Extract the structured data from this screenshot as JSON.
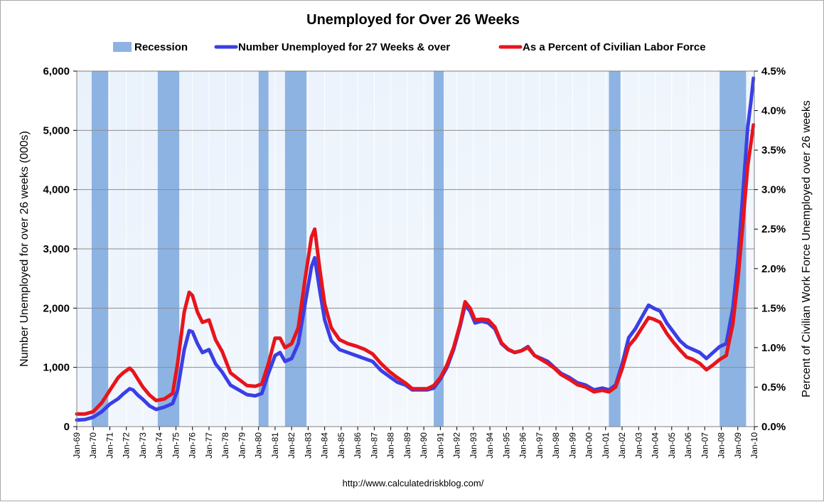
{
  "chart_data": {
    "type": "line",
    "title": "Unemployed for Over 26 Weeks",
    "legend": {
      "placement": "top",
      "entries": [
        {
          "key": "recession",
          "label": "Recession",
          "color": "#8db3e2"
        },
        {
          "key": "number",
          "label": "Number Unemployed for 27 Weeks & over",
          "color": "#3a3fe6"
        },
        {
          "key": "percent",
          "label": "As a Percent of Civilian Labor Force",
          "color": "#e8141c"
        }
      ]
    },
    "ylabel_left": "Number Unemployed for over 26 weeks (000s)",
    "ylabel_right": "Percent of Civilian Work Force Unemployed over 26 weeks",
    "y_left": {
      "min": 0,
      "max": 6000,
      "ticks": [
        0,
        1000,
        2000,
        3000,
        4000,
        5000,
        6000
      ],
      "tick_labels": [
        "0",
        "1,000",
        "2,000",
        "3,000",
        "4,000",
        "5,000",
        "6,000"
      ]
    },
    "y_right": {
      "min": 0,
      "max": 4.5,
      "ticks": [
        0,
        0.5,
        1,
        1.5,
        2,
        2.5,
        3,
        3.5,
        4,
        4.5
      ],
      "tick_labels": [
        "0.0%",
        "0.5%",
        "1.0%",
        "1.5%",
        "2.0%",
        "2.5%",
        "3.0%",
        "3.5%",
        "4.0%",
        "4.5%"
      ]
    },
    "x_range": [
      1969.0,
      2010.0
    ],
    "x_tick_labels": [
      "Jan-69",
      "Jan-70",
      "Jan-71",
      "Jan-72",
      "Jan-73",
      "Jan-74",
      "Jan-75",
      "Jan-76",
      "Jan-77",
      "Jan-78",
      "Jan-79",
      "Jan-80",
      "Jan-81",
      "Jan-82",
      "Jan-83",
      "Jan-84",
      "Jan-85",
      "Jan-86",
      "Jan-87",
      "Jan-88",
      "Jan-89",
      "Jan-90",
      "Jan-91",
      "Jan-92",
      "Jan-93",
      "Jan-94",
      "Jan-95",
      "Jan-96",
      "Jan-97",
      "Jan-98",
      "Jan-99",
      "Jan-00",
      "Jan-01",
      "Jan-02",
      "Jan-03",
      "Jan-04",
      "Jan-05",
      "Jan-06",
      "Jan-07",
      "Jan-08",
      "Jan-09",
      "Jan-10"
    ],
    "grid": true,
    "recessions": [
      {
        "start": 1969.9,
        "end": 1970.9
      },
      {
        "start": 1973.9,
        "end": 1975.2
      },
      {
        "start": 1980.0,
        "end": 1980.6
      },
      {
        "start": 1981.6,
        "end": 1982.9
      },
      {
        "start": 1990.6,
        "end": 1991.2
      },
      {
        "start": 2001.2,
        "end": 2001.9
      },
      {
        "start": 2007.9,
        "end": 2009.5
      }
    ],
    "series": [
      {
        "name": "Number Unemployed for 27 Weeks & over",
        "axis": "left",
        "color": "#3a3fe6",
        "points": [
          [
            1969.0,
            110
          ],
          [
            1969.5,
            120
          ],
          [
            1970.0,
            160
          ],
          [
            1970.5,
            250
          ],
          [
            1971.0,
            380
          ],
          [
            1971.5,
            470
          ],
          [
            1971.8,
            550
          ],
          [
            1972.2,
            640
          ],
          [
            1972.4,
            620
          ],
          [
            1972.7,
            530
          ],
          [
            1973.0,
            460
          ],
          [
            1973.4,
            350
          ],
          [
            1973.8,
            290
          ],
          [
            1974.3,
            330
          ],
          [
            1974.8,
            390
          ],
          [
            1975.1,
            620
          ],
          [
            1975.5,
            1300
          ],
          [
            1975.8,
            1620
          ],
          [
            1976.0,
            1600
          ],
          [
            1976.3,
            1400
          ],
          [
            1976.6,
            1250
          ],
          [
            1977.0,
            1300
          ],
          [
            1977.4,
            1060
          ],
          [
            1977.8,
            920
          ],
          [
            1978.3,
            700
          ],
          [
            1978.8,
            620
          ],
          [
            1979.3,
            540
          ],
          [
            1979.8,
            520
          ],
          [
            1980.2,
            560
          ],
          [
            1980.6,
            900
          ],
          [
            1981.0,
            1200
          ],
          [
            1981.3,
            1250
          ],
          [
            1981.6,
            1100
          ],
          [
            1982.0,
            1150
          ],
          [
            1982.4,
            1400
          ],
          [
            1982.8,
            2050
          ],
          [
            1983.2,
            2700
          ],
          [
            1983.4,
            2850
          ],
          [
            1983.7,
            2300
          ],
          [
            1984.0,
            1800
          ],
          [
            1984.4,
            1450
          ],
          [
            1984.9,
            1300
          ],
          [
            1985.4,
            1250
          ],
          [
            1985.9,
            1200
          ],
          [
            1986.4,
            1150
          ],
          [
            1986.9,
            1100
          ],
          [
            1987.4,
            950
          ],
          [
            1987.9,
            850
          ],
          [
            1988.4,
            750
          ],
          [
            1988.9,
            700
          ],
          [
            1989.3,
            620
          ],
          [
            1989.7,
            620
          ],
          [
            1990.2,
            620
          ],
          [
            1990.6,
            650
          ],
          [
            1991.0,
            800
          ],
          [
            1991.4,
            1000
          ],
          [
            1991.8,
            1300
          ],
          [
            1992.2,
            1700
          ],
          [
            1992.5,
            2050
          ],
          [
            1992.8,
            1950
          ],
          [
            1993.1,
            1750
          ],
          [
            1993.5,
            1780
          ],
          [
            1993.9,
            1750
          ],
          [
            1994.3,
            1650
          ],
          [
            1994.7,
            1400
          ],
          [
            1995.1,
            1300
          ],
          [
            1995.5,
            1250
          ],
          [
            1995.9,
            1280
          ],
          [
            1996.3,
            1350
          ],
          [
            1996.7,
            1200
          ],
          [
            1997.1,
            1150
          ],
          [
            1997.5,
            1100
          ],
          [
            1997.9,
            1000
          ],
          [
            1998.3,
            900
          ],
          [
            1998.8,
            830
          ],
          [
            1999.3,
            740
          ],
          [
            1999.8,
            700
          ],
          [
            2000.3,
            620
          ],
          [
            2000.8,
            650
          ],
          [
            2001.2,
            620
          ],
          [
            2001.6,
            700
          ],
          [
            2002.0,
            1050
          ],
          [
            2002.4,
            1500
          ],
          [
            2002.8,
            1650
          ],
          [
            2003.2,
            1850
          ],
          [
            2003.6,
            2050
          ],
          [
            2003.9,
            2000
          ],
          [
            2004.3,
            1950
          ],
          [
            2004.7,
            1750
          ],
          [
            2005.1,
            1600
          ],
          [
            2005.5,
            1450
          ],
          [
            2005.9,
            1350
          ],
          [
            2006.3,
            1300
          ],
          [
            2006.7,
            1250
          ],
          [
            2007.1,
            1150
          ],
          [
            2007.5,
            1250
          ],
          [
            2007.9,
            1350
          ],
          [
            2008.3,
            1400
          ],
          [
            2008.7,
            2000
          ],
          [
            2009.0,
            2800
          ],
          [
            2009.3,
            3900
          ],
          [
            2009.6,
            5050
          ],
          [
            2009.8,
            5500
          ],
          [
            2009.95,
            5880
          ]
        ]
      },
      {
        "name": "As a Percent of Civilian Labor Force",
        "axis": "right",
        "color": "#e8141c",
        "points": [
          [
            1969.0,
            0.16
          ],
          [
            1969.5,
            0.16
          ],
          [
            1970.0,
            0.19
          ],
          [
            1970.5,
            0.3
          ],
          [
            1971.0,
            0.46
          ],
          [
            1971.5,
            0.62
          ],
          [
            1971.8,
            0.68
          ],
          [
            1972.2,
            0.74
          ],
          [
            1972.4,
            0.7
          ],
          [
            1972.7,
            0.6
          ],
          [
            1973.0,
            0.5
          ],
          [
            1973.4,
            0.4
          ],
          [
            1973.8,
            0.33
          ],
          [
            1974.3,
            0.35
          ],
          [
            1974.8,
            0.42
          ],
          [
            1975.1,
            0.8
          ],
          [
            1975.5,
            1.45
          ],
          [
            1975.8,
            1.7
          ],
          [
            1976.0,
            1.66
          ],
          [
            1976.3,
            1.45
          ],
          [
            1976.6,
            1.32
          ],
          [
            1977.0,
            1.35
          ],
          [
            1977.4,
            1.1
          ],
          [
            1977.8,
            0.95
          ],
          [
            1978.3,
            0.68
          ],
          [
            1978.8,
            0.6
          ],
          [
            1979.3,
            0.52
          ],
          [
            1979.8,
            0.51
          ],
          [
            1980.2,
            0.54
          ],
          [
            1980.6,
            0.8
          ],
          [
            1981.0,
            1.12
          ],
          [
            1981.3,
            1.12
          ],
          [
            1981.6,
            1.0
          ],
          [
            1982.0,
            1.05
          ],
          [
            1982.4,
            1.25
          ],
          [
            1982.8,
            1.85
          ],
          [
            1983.2,
            2.4
          ],
          [
            1983.4,
            2.5
          ],
          [
            1983.7,
            2.0
          ],
          [
            1984.0,
            1.55
          ],
          [
            1984.4,
            1.25
          ],
          [
            1984.9,
            1.1
          ],
          [
            1985.4,
            1.05
          ],
          [
            1985.9,
            1.02
          ],
          [
            1986.4,
            0.98
          ],
          [
            1986.9,
            0.92
          ],
          [
            1987.4,
            0.8
          ],
          [
            1987.9,
            0.7
          ],
          [
            1988.4,
            0.62
          ],
          [
            1988.9,
            0.55
          ],
          [
            1989.3,
            0.48
          ],
          [
            1989.7,
            0.48
          ],
          [
            1990.2,
            0.48
          ],
          [
            1990.6,
            0.52
          ],
          [
            1991.0,
            0.62
          ],
          [
            1991.4,
            0.78
          ],
          [
            1991.8,
            1.0
          ],
          [
            1992.2,
            1.3
          ],
          [
            1992.5,
            1.58
          ],
          [
            1992.8,
            1.5
          ],
          [
            1993.1,
            1.35
          ],
          [
            1993.5,
            1.36
          ],
          [
            1993.9,
            1.35
          ],
          [
            1994.3,
            1.26
          ],
          [
            1994.7,
            1.06
          ],
          [
            1995.1,
            0.98
          ],
          [
            1995.5,
            0.94
          ],
          [
            1995.9,
            0.96
          ],
          [
            1996.3,
            1.0
          ],
          [
            1996.7,
            0.9
          ],
          [
            1997.1,
            0.85
          ],
          [
            1997.5,
            0.8
          ],
          [
            1997.9,
            0.74
          ],
          [
            1998.3,
            0.66
          ],
          [
            1998.8,
            0.6
          ],
          [
            1999.3,
            0.53
          ],
          [
            1999.8,
            0.5
          ],
          [
            2000.3,
            0.44
          ],
          [
            2000.8,
            0.46
          ],
          [
            2001.2,
            0.44
          ],
          [
            2001.6,
            0.5
          ],
          [
            2002.0,
            0.73
          ],
          [
            2002.4,
            1.02
          ],
          [
            2002.8,
            1.12
          ],
          [
            2003.2,
            1.25
          ],
          [
            2003.6,
            1.38
          ],
          [
            2003.9,
            1.36
          ],
          [
            2004.3,
            1.32
          ],
          [
            2004.7,
            1.18
          ],
          [
            2005.1,
            1.07
          ],
          [
            2005.5,
            0.97
          ],
          [
            2005.9,
            0.88
          ],
          [
            2006.3,
            0.85
          ],
          [
            2006.7,
            0.8
          ],
          [
            2007.1,
            0.72
          ],
          [
            2007.5,
            0.78
          ],
          [
            2007.9,
            0.85
          ],
          [
            2008.3,
            0.9
          ],
          [
            2008.7,
            1.3
          ],
          [
            2009.0,
            1.85
          ],
          [
            2009.3,
            2.55
          ],
          [
            2009.6,
            3.3
          ],
          [
            2009.8,
            3.6
          ],
          [
            2009.95,
            3.82
          ]
        ]
      }
    ]
  },
  "source_text": "http://www.calculatedriskblog.com/"
}
